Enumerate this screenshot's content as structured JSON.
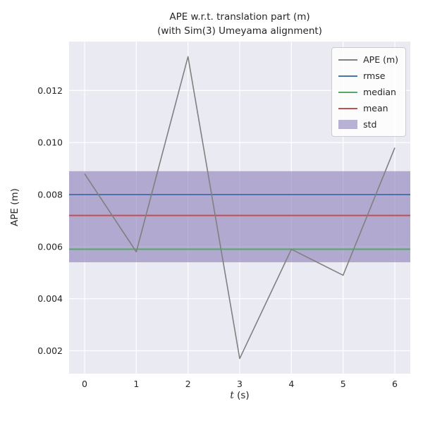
{
  "chart_data": {
    "type": "line",
    "title": "APE w.r.t. translation part (m)",
    "subtitle": "(with Sim(3) Umeyama alignment)",
    "xlabel": "t (s)",
    "xlabel_var": "t",
    "xlabel_unit": " (s)",
    "ylabel": "APE (m)",
    "x": [
      0,
      1,
      2,
      3,
      4,
      5,
      6
    ],
    "series": [
      {
        "name": "APE (m)",
        "color": "#808080",
        "values": [
          0.0088,
          0.0058,
          0.0133,
          0.0017,
          0.0059,
          0.0049,
          0.0098
        ]
      }
    ],
    "stat_lines": [
      {
        "name": "rmse",
        "color": "#4c72b0",
        "value": 0.008
      },
      {
        "name": "median",
        "color": "#55a868",
        "value": 0.0059
      },
      {
        "name": "mean",
        "color": "#c44e52",
        "value": 0.0072
      }
    ],
    "band": {
      "name": "std",
      "color": "#8172b2",
      "alpha": 0.55,
      "low": 0.0054,
      "high": 0.0089
    },
    "xlim": [
      -0.3,
      6.3
    ],
    "ylim": [
      0.00112,
      0.01388
    ],
    "xticks": [
      0,
      1,
      2,
      3,
      4,
      5,
      6
    ],
    "xtick_labels": [
      "0",
      "1",
      "2",
      "3",
      "4",
      "5",
      "6"
    ],
    "yticks": [
      0.002,
      0.004,
      0.006,
      0.008,
      0.01,
      0.012
    ],
    "ytick_labels": [
      "0.002",
      "0.004",
      "0.006",
      "0.008",
      "0.010",
      "0.012"
    ],
    "grid": true,
    "plot_bg": "#eaeaf2",
    "grid_color": "#ffffff",
    "legend": {
      "position": "upper right",
      "entries": [
        {
          "label": "APE (m)",
          "color": "#808080",
          "kind": "line"
        },
        {
          "label": "rmse",
          "color": "#4c72b0",
          "kind": "line"
        },
        {
          "label": "median",
          "color": "#55a868",
          "kind": "line"
        },
        {
          "label": "mean",
          "color": "#c44e52",
          "kind": "line"
        },
        {
          "label": "std",
          "color": "#8172b2",
          "kind": "patch"
        }
      ]
    }
  }
}
